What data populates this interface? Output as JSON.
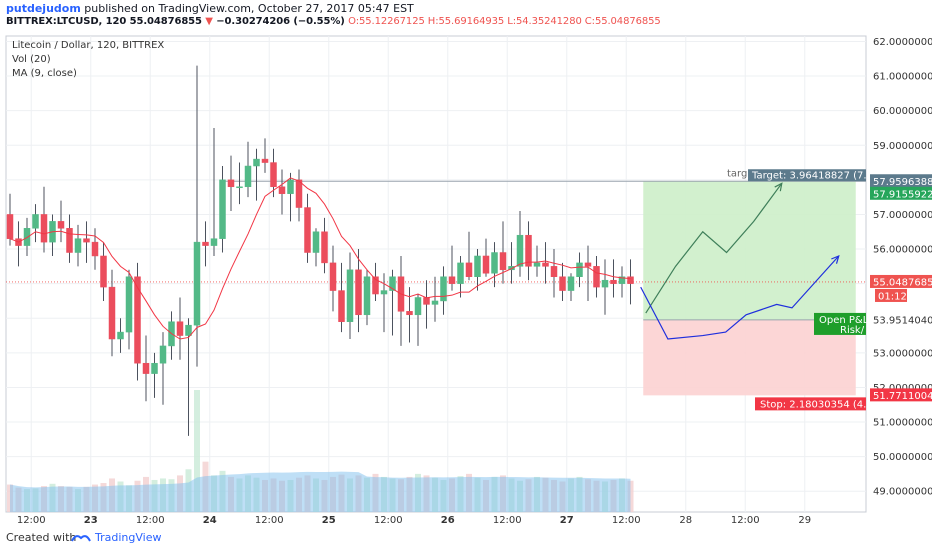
{
  "header": {
    "author": "putdejudom",
    "published": "published on TradingView.com, October 27, 2017 05:47 EST",
    "symbol": "BITTREX:LTCUSD, 120",
    "last": "55.04876855",
    "arrow": "▼",
    "change": "−0.30274206 (−0.55%)",
    "ohlc": "O:55.12267125 H:55.69164935 L:54.35241280 C:55.04876855"
  },
  "legend": {
    "title": "Litecoin / Dollar, 120, BITTREX",
    "vol": "Vol (20)",
    "ma": "MA (9, close)"
  },
  "footer": {
    "created": "Created with",
    "brand": "TradingView"
  },
  "colors": {
    "up": "#53b987",
    "down": "#eb4d5c",
    "ma": "#f23645",
    "volume_area": "#7fbfee",
    "target_zone": "#cdeec9",
    "stop_zone": "#fcd2d2",
    "arrow_green": "#3f7f5a",
    "arrow_blue": "#1f2fdd"
  },
  "chart_data": {
    "type": "candlestick",
    "yrange": [
      48.4,
      62.1
    ],
    "y_ticks": [
      "62.00000000",
      "61.00000000",
      "60.00000000",
      "59.00000000",
      "58.00000000",
      "57.00000000",
      "56.00000000",
      "55.00000000",
      "54.00000000",
      "53.00000000",
      "52.00000000",
      "51.00000000",
      "50.00000000",
      "49.00000000"
    ],
    "x_ticks": [
      {
        "label": "12:00",
        "bar": 2.5
      },
      {
        "label": "23",
        "bar": 9.5,
        "bold": true
      },
      {
        "label": "12:00",
        "bar": 16.5
      },
      {
        "label": "24",
        "bar": 23.5,
        "bold": true
      },
      {
        "label": "12:00",
        "bar": 30.5
      },
      {
        "label": "25",
        "bar": 37.5,
        "bold": true
      },
      {
        "label": "12:00",
        "bar": 44.5
      },
      {
        "label": "26",
        "bar": 51.5,
        "bold": true
      },
      {
        "label": "12:00",
        "bar": 58.5
      },
      {
        "label": "27",
        "bar": 65.5,
        "bold": true
      },
      {
        "label": "12:00",
        "bar": 72.5
      },
      {
        "label": "28",
        "bar": 79.5
      },
      {
        "label": "12:00",
        "bar": 86.5
      },
      {
        "label": "29",
        "bar": 93.5
      }
    ],
    "candles": [
      [
        57.0,
        57.6,
        56.1,
        56.3
      ],
      [
        56.3,
        56.8,
        55.5,
        56.1
      ],
      [
        56.1,
        56.9,
        55.8,
        56.6
      ],
      [
        56.6,
        57.3,
        56.2,
        57.0
      ],
      [
        57.0,
        57.8,
        55.9,
        56.2
      ],
      [
        56.2,
        57.0,
        55.8,
        56.8
      ],
      [
        56.8,
        57.4,
        56.2,
        56.6
      ],
      [
        56.6,
        57.0,
        55.6,
        55.9
      ],
      [
        55.9,
        56.7,
        55.5,
        56.3
      ],
      [
        56.3,
        56.8,
        55.6,
        56.2
      ],
      [
        56.2,
        56.6,
        55.4,
        55.8
      ],
      [
        55.8,
        56.2,
        54.5,
        54.9
      ],
      [
        54.9,
        55.4,
        52.9,
        53.4
      ],
      [
        53.4,
        54.0,
        53.0,
        53.6
      ],
      [
        53.6,
        55.4,
        53.1,
        55.2
      ],
      [
        55.2,
        55.6,
        52.2,
        52.7
      ],
      [
        52.7,
        53.5,
        51.6,
        52.4
      ],
      [
        52.4,
        53.0,
        51.7,
        52.7
      ],
      [
        52.7,
        53.6,
        51.5,
        53.2
      ],
      [
        53.2,
        54.2,
        52.8,
        53.9
      ],
      [
        53.9,
        54.6,
        52.8,
        53.5
      ],
      [
        53.5,
        54.0,
        50.6,
        53.8
      ],
      [
        53.8,
        61.3,
        52.6,
        56.2
      ],
      [
        56.2,
        56.8,
        55.5,
        56.1
      ],
      [
        56.1,
        59.5,
        55.8,
        56.3
      ],
      [
        56.3,
        58.4,
        55.9,
        58.0
      ],
      [
        58.0,
        58.7,
        57.1,
        57.8
      ],
      [
        57.8,
        58.5,
        57.3,
        57.8
      ],
      [
        57.8,
        59.1,
        57.5,
        58.4
      ],
      [
        58.4,
        58.9,
        57.4,
        58.6
      ],
      [
        58.6,
        59.2,
        58.2,
        58.5
      ],
      [
        58.5,
        58.9,
        57.5,
        57.8
      ],
      [
        57.8,
        58.3,
        57.0,
        57.6
      ],
      [
        57.6,
        58.2,
        56.8,
        58.0
      ],
      [
        58.0,
        58.3,
        56.8,
        57.2
      ],
      [
        57.2,
        57.6,
        55.6,
        55.9
      ],
      [
        55.9,
        56.6,
        55.5,
        56.5
      ],
      [
        56.5,
        56.9,
        55.3,
        55.6
      ],
      [
        55.6,
        56.1,
        54.2,
        54.8
      ],
      [
        54.8,
        55.6,
        53.6,
        53.9
      ],
      [
        53.9,
        55.9,
        53.4,
        55.4
      ],
      [
        55.4,
        56.0,
        53.6,
        54.1
      ],
      [
        54.1,
        55.4,
        53.8,
        55.2
      ],
      [
        55.2,
        55.6,
        54.5,
        54.7
      ],
      [
        54.7,
        55.3,
        53.6,
        54.8
      ],
      [
        54.8,
        55.4,
        53.5,
        55.2
      ],
      [
        55.2,
        55.8,
        53.2,
        54.2
      ],
      [
        54.2,
        54.9,
        53.3,
        54.1
      ],
      [
        54.1,
        54.7,
        53.2,
        54.6
      ],
      [
        54.6,
        55.1,
        53.7,
        54.4
      ],
      [
        54.4,
        55.2,
        53.9,
        54.5
      ],
      [
        54.5,
        55.5,
        54.1,
        55.2
      ],
      [
        55.2,
        56.1,
        54.8,
        55.0
      ],
      [
        55.0,
        55.8,
        54.6,
        55.6
      ],
      [
        55.6,
        56.5,
        55.1,
        55.2
      ],
      [
        55.2,
        56.0,
        54.8,
        55.8
      ],
      [
        55.8,
        56.3,
        55.2,
        55.3
      ],
      [
        55.3,
        56.2,
        54.9,
        55.9
      ],
      [
        55.9,
        56.8,
        55.0,
        55.4
      ],
      [
        55.4,
        56.2,
        55.0,
        55.5
      ],
      [
        55.5,
        57.1,
        55.2,
        56.4
      ],
      [
        56.4,
        56.8,
        55.1,
        55.5
      ],
      [
        55.5,
        56.1,
        55.2,
        55.6
      ],
      [
        55.6,
        56.2,
        55.0,
        55.5
      ],
      [
        55.5,
        56.0,
        54.6,
        55.2
      ],
      [
        55.2,
        55.6,
        54.5,
        54.8
      ],
      [
        54.8,
        55.3,
        54.5,
        55.2
      ],
      [
        55.2,
        55.9,
        54.9,
        55.6
      ],
      [
        55.6,
        56.1,
        54.5,
        55.5
      ],
      [
        55.5,
        55.8,
        54.6,
        54.9
      ],
      [
        54.9,
        55.7,
        54.1,
        55.1
      ],
      [
        55.1,
        55.7,
        54.6,
        55.0
      ],
      [
        55.0,
        55.5,
        54.6,
        55.2
      ],
      [
        55.2,
        55.7,
        54.4,
        55.0
      ]
    ],
    "volume": [
      3.6,
      3.2,
      3.0,
      3.1,
      3.4,
      3.7,
      3.4,
      3.3,
      3.0,
      3.3,
      3.6,
      3.8,
      4.4,
      4.0,
      3.5,
      4.1,
      4.6,
      4.2,
      4.4,
      4.3,
      4.8,
      5.6,
      16.0,
      6.6,
      4.8,
      5.4,
      4.6,
      4.4,
      4.8,
      4.5,
      4.2,
      4.4,
      4.1,
      4.2,
      4.5,
      4.8,
      4.4,
      4.2,
      4.6,
      4.9,
      4.4,
      4.8,
      4.5,
      5.0,
      4.6,
      4.4,
      4.3,
      4.6,
      5.0,
      4.8,
      4.5,
      4.2,
      4.4,
      4.7,
      5.0,
      4.5,
      4.2,
      4.6,
      4.8,
      4.4,
      4.1,
      4.3,
      4.6,
      4.5,
      4.2,
      4.0,
      4.4,
      4.6,
      4.3,
      4.1,
      4.0,
      4.2,
      4.4,
      4.1
    ],
    "current_price": {
      "value": 55.04876855,
      "label": "55.04876855",
      "countdown": "01:12:16"
    },
    "position": {
      "target_price": 57.95963883,
      "target_label": "57.95963883",
      "entry_price": 53.95140402,
      "entry_label": "53.95140402",
      "stop_price": 51.77110048,
      "stop_label": "51.77110048",
      "tp_line_price": 57.91559229,
      "tp_line_label": "57.91559229",
      "target_text": "Target: 3.96418827 (7.",
      "stop_text": "Stop: 2.18030354 (4.",
      "open_text": "Open P&L",
      "risk_text": "Risk/",
      "targ_text": "targ",
      "start_bar": 74.5,
      "end_bar": 99.5
    },
    "green_path": [
      [
        74.8,
        54.15
      ],
      [
        78.3,
        55.5
      ],
      [
        81.5,
        56.5
      ],
      [
        84.3,
        55.9
      ],
      [
        87.5,
        56.8
      ],
      [
        90.8,
        57.9
      ]
    ],
    "blue_path": [
      [
        74.2,
        54.9
      ],
      [
        77.4,
        53.4
      ],
      [
        81.5,
        53.5
      ],
      [
        84.2,
        53.6
      ],
      [
        86.6,
        54.1
      ],
      [
        90.2,
        54.4
      ],
      [
        92.0,
        54.3
      ],
      [
        97.5,
        55.8
      ]
    ]
  }
}
